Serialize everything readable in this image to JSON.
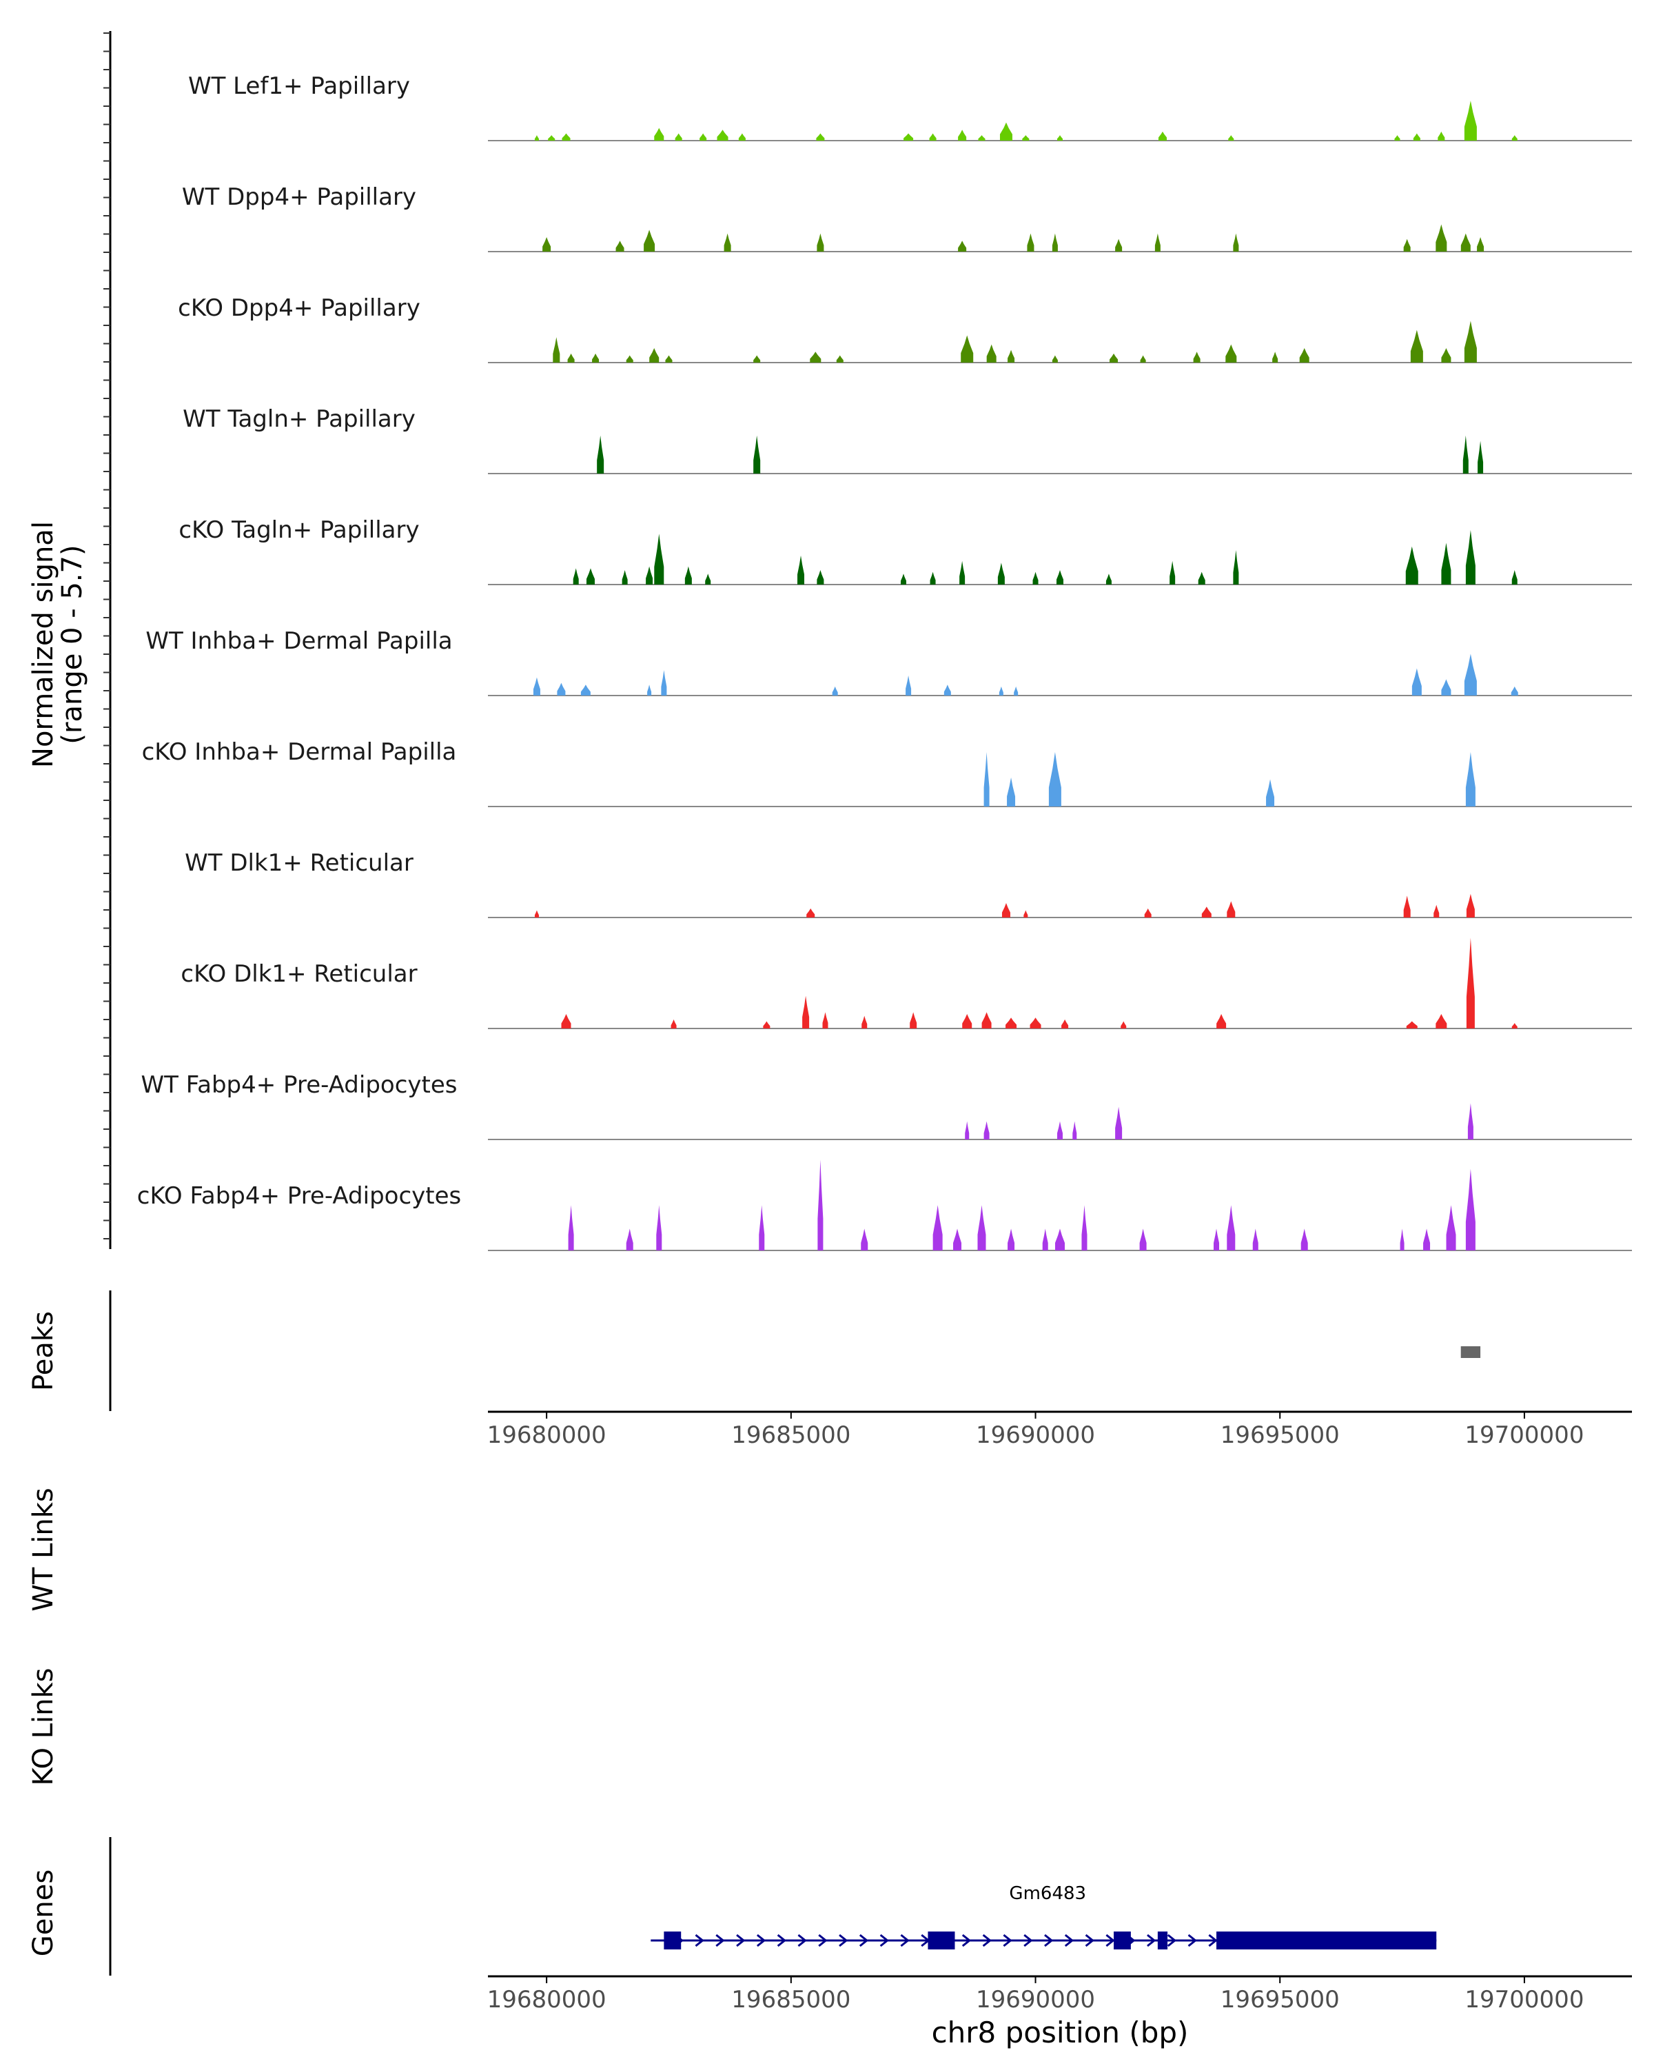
{
  "chart_data": {
    "type": "area",
    "region": {
      "chrom": "chr8",
      "start": 19678800,
      "end": 19702200
    },
    "coverage": {
      "ylabel_line1": "Normalized signal",
      "ylabel_line2": "(range 0 - 5.7)",
      "ylim": [
        0,
        5.7
      ],
      "tracks": [
        {
          "name": "WT Lef1+ Papillary",
          "color": "#66CC00",
          "peaks": [
            [
              19679800,
              5,
              0.3
            ],
            [
              19680100,
              10,
              0.3
            ],
            [
              19680400,
              12,
              0.4
            ],
            [
              19682300,
              14,
              0.7
            ],
            [
              19682700,
              10,
              0.4
            ],
            [
              19683200,
              10,
              0.4
            ],
            [
              19683600,
              16,
              0.6
            ],
            [
              19684000,
              10,
              0.4
            ],
            [
              19685600,
              12,
              0.4
            ],
            [
              19687400,
              14,
              0.4
            ],
            [
              19687900,
              10,
              0.4
            ],
            [
              19688500,
              12,
              0.6
            ],
            [
              19688900,
              10,
              0.3
            ],
            [
              19689400,
              18,
              1.0
            ],
            [
              19689800,
              10,
              0.3
            ],
            [
              19690500,
              8,
              0.3
            ],
            [
              19692600,
              12,
              0.5
            ],
            [
              19694000,
              8,
              0.3
            ],
            [
              19697400,
              8,
              0.3
            ],
            [
              19697800,
              10,
              0.4
            ],
            [
              19698300,
              10,
              0.5
            ],
            [
              19698900,
              18,
              2.2
            ],
            [
              19699800,
              8,
              0.3
            ]
          ]
        },
        {
          "name": "WT Dpp4+ Papillary",
          "color": "#4D8C00",
          "peaks": [
            [
              19680000,
              12,
              0.8
            ],
            [
              19681500,
              12,
              0.6
            ],
            [
              19682100,
              16,
              1.2
            ],
            [
              19683700,
              10,
              1.0
            ],
            [
              19685600,
              10,
              1.0
            ],
            [
              19688500,
              12,
              0.6
            ],
            [
              19689900,
              10,
              1.0
            ],
            [
              19690400,
              8,
              1.0
            ],
            [
              19691700,
              10,
              0.7
            ],
            [
              19692500,
              8,
              1.0
            ],
            [
              19694100,
              8,
              1.0
            ],
            [
              19697600,
              10,
              0.7
            ],
            [
              19698300,
              16,
              1.5
            ],
            [
              19698800,
              14,
              1.0
            ],
            [
              19699100,
              10,
              0.8
            ]
          ]
        },
        {
          "name": "cKO Dpp4+ Papillary",
          "color": "#4D8C00",
          "peaks": [
            [
              19680200,
              10,
              1.4
            ],
            [
              19680500,
              10,
              0.5
            ],
            [
              19681000,
              10,
              0.5
            ],
            [
              19681700,
              10,
              0.4
            ],
            [
              19682200,
              14,
              0.8
            ],
            [
              19682500,
              10,
              0.4
            ],
            [
              19684300,
              10,
              0.4
            ],
            [
              19685500,
              16,
              0.6
            ],
            [
              19686000,
              10,
              0.4
            ],
            [
              19688600,
              18,
              1.5
            ],
            [
              19689100,
              14,
              1.0
            ],
            [
              19689500,
              10,
              0.7
            ],
            [
              19690400,
              8,
              0.4
            ],
            [
              19691600,
              12,
              0.5
            ],
            [
              19692200,
              8,
              0.4
            ],
            [
              19693300,
              10,
              0.6
            ],
            [
              19694000,
              16,
              1.0
            ],
            [
              19694900,
              8,
              0.6
            ],
            [
              19695500,
              14,
              0.8
            ],
            [
              19697800,
              18,
              1.8
            ],
            [
              19698400,
              14,
              0.8
            ],
            [
              19698900,
              18,
              2.3
            ]
          ]
        },
        {
          "name": "WT Tagln+ Papillary",
          "color": "#006400",
          "peaks": [
            [
              19681100,
              10,
              2.1
            ],
            [
              19684300,
              10,
              2.1
            ],
            [
              19698800,
              8,
              2.1
            ],
            [
              19699100,
              8,
              1.8
            ]
          ]
        },
        {
          "name": "cKO Tagln+ Papillary",
          "color": "#006400",
          "peaks": [
            [
              19680600,
              8,
              0.9
            ],
            [
              19680900,
              12,
              0.9
            ],
            [
              19681600,
              8,
              0.8
            ],
            [
              19682100,
              10,
              1.0
            ],
            [
              19682300,
              14,
              2.8
            ],
            [
              19682900,
              10,
              1.0
            ],
            [
              19683300,
              8,
              0.6
            ],
            [
              19685200,
              10,
              1.6
            ],
            [
              19685600,
              10,
              0.8
            ],
            [
              19687300,
              8,
              0.6
            ],
            [
              19687900,
              8,
              0.7
            ],
            [
              19688500,
              8,
              1.3
            ],
            [
              19689300,
              10,
              1.2
            ],
            [
              19690000,
              8,
              0.7
            ],
            [
              19690500,
              10,
              0.8
            ],
            [
              19691500,
              8,
              0.6
            ],
            [
              19692800,
              8,
              1.3
            ],
            [
              19693400,
              10,
              0.7
            ],
            [
              19694100,
              8,
              1.9
            ],
            [
              19697700,
              18,
              2.1
            ],
            [
              19698400,
              14,
              2.3
            ],
            [
              19698900,
              14,
              3.0
            ],
            [
              19699800,
              8,
              0.8
            ]
          ]
        },
        {
          "name": "WT Inhba+ Dermal Papilla",
          "color": "#56A0E6",
          "peaks": [
            [
              19679800,
              10,
              1.0
            ],
            [
              19680300,
              12,
              0.7
            ],
            [
              19680800,
              14,
              0.6
            ],
            [
              19682100,
              6,
              0.6
            ],
            [
              19682400,
              8,
              1.4
            ],
            [
              19685900,
              8,
              0.5
            ],
            [
              19687400,
              8,
              1.1
            ],
            [
              19688200,
              10,
              0.6
            ],
            [
              19689300,
              6,
              0.5
            ],
            [
              19689600,
              6,
              0.5
            ],
            [
              19697800,
              14,
              1.5
            ],
            [
              19698400,
              14,
              0.9
            ],
            [
              19698900,
              18,
              2.3
            ],
            [
              19699800,
              10,
              0.5
            ]
          ]
        },
        {
          "name": "cKO Inhba+ Dermal Papilla",
          "color": "#56A0E6",
          "peaks": [
            [
              19689000,
              8,
              3.0
            ],
            [
              19689500,
              12,
              1.6
            ],
            [
              19690400,
              18,
              3.0
            ],
            [
              19694800,
              12,
              1.5
            ],
            [
              19698900,
              14,
              3.0
            ]
          ]
        },
        {
          "name": "WT Dlk1+ Reticular",
          "color": "#EE2828",
          "peaks": [
            [
              19679800,
              4,
              0.4
            ],
            [
              19685400,
              12,
              0.5
            ],
            [
              19689400,
              12,
              0.8
            ],
            [
              19689800,
              6,
              0.4
            ],
            [
              19692300,
              10,
              0.5
            ],
            [
              19693500,
              14,
              0.6
            ],
            [
              19694000,
              12,
              0.9
            ],
            [
              19697600,
              10,
              1.2
            ],
            [
              19698200,
              8,
              0.7
            ],
            [
              19698900,
              12,
              1.3
            ]
          ]
        },
        {
          "name": "cKO Dlk1+ Reticular",
          "color": "#EE2828",
          "peaks": [
            [
              19680400,
              14,
              0.8
            ],
            [
              19682600,
              8,
              0.5
            ],
            [
              19684500,
              10,
              0.4
            ],
            [
              19685300,
              10,
              1.8
            ],
            [
              19685700,
              8,
              0.9
            ],
            [
              19686500,
              8,
              0.7
            ],
            [
              19687500,
              10,
              0.9
            ],
            [
              19688600,
              14,
              0.8
            ],
            [
              19689000,
              14,
              0.9
            ],
            [
              19689500,
              16,
              0.6
            ],
            [
              19690000,
              16,
              0.6
            ],
            [
              19690600,
              10,
              0.5
            ],
            [
              19691800,
              8,
              0.4
            ],
            [
              19693800,
              14,
              0.8
            ],
            [
              19697700,
              16,
              0.4
            ],
            [
              19698300,
              16,
              0.8
            ],
            [
              19698900,
              12,
              5.0
            ],
            [
              19699800,
              8,
              0.3
            ]
          ]
        },
        {
          "name": "WT Fabp4+ Pre-Adipocytes",
          "color": "#A938E8",
          "peaks": [
            [
              19688600,
              6,
              1.0
            ],
            [
              19689000,
              8,
              1.0
            ],
            [
              19690500,
              8,
              1.0
            ],
            [
              19690800,
              6,
              1.0
            ],
            [
              19691700,
              10,
              1.8
            ],
            [
              19698900,
              8,
              2.0
            ]
          ]
        },
        {
          "name": "cKO Fabp4+ Pre-Adipocytes",
          "color": "#A938E8",
          "peaks": [
            [
              19680500,
              8,
              2.5
            ],
            [
              19681700,
              10,
              1.2
            ],
            [
              19682300,
              8,
              2.5
            ],
            [
              19684400,
              8,
              2.5
            ],
            [
              19685600,
              8,
              5.0
            ],
            [
              19686500,
              10,
              1.2
            ],
            [
              19688000,
              14,
              2.5
            ],
            [
              19688400,
              12,
              1.2
            ],
            [
              19688900,
              12,
              2.5
            ],
            [
              19689500,
              10,
              1.2
            ],
            [
              19690200,
              8,
              1.2
            ],
            [
              19690500,
              14,
              1.2
            ],
            [
              19691000,
              8,
              2.5
            ],
            [
              19692200,
              10,
              1.2
            ],
            [
              19693700,
              8,
              1.2
            ],
            [
              19694000,
              12,
              2.5
            ],
            [
              19694500,
              8,
              1.2
            ],
            [
              19695500,
              10,
              1.2
            ],
            [
              19697500,
              6,
              1.2
            ],
            [
              19698000,
              10,
              1.2
            ],
            [
              19698500,
              14,
              2.5
            ],
            [
              19698900,
              14,
              4.5
            ]
          ]
        }
      ]
    },
    "peaks_track": {
      "label": "Peaks",
      "color": "#666666",
      "regions": [
        [
          19698700,
          19699100
        ]
      ]
    },
    "links_tracks": [
      {
        "label": "WT Links"
      },
      {
        "label": "KO Links"
      }
    ],
    "genes_track": {
      "label": "Genes",
      "color": "#00008B",
      "genes": [
        {
          "name": "Gm6483",
          "strand": "+",
          "start": 19682300,
          "end": 19698200,
          "exons": [
            [
              19682400,
              19682750
            ],
            [
              19687800,
              19688350
            ],
            [
              19691600,
              19691950
            ],
            [
              19692500,
              19692700
            ],
            [
              19693700,
              19698200
            ]
          ]
        }
      ]
    },
    "xaxis": {
      "ticks": [
        19680000,
        19685000,
        19690000,
        19695000,
        19700000
      ],
      "tick_labels": [
        "19680000",
        "19685000",
        "19690000",
        "19695000",
        "19700000"
      ],
      "xlabel": "chr8 position (bp)"
    }
  }
}
